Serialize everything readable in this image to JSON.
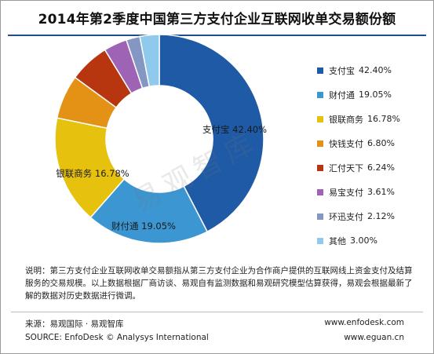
{
  "title": "2014年第2季度中国第三方支付企业互联网收单交易额份额",
  "chart_data": {
    "type": "pie",
    "donut": true,
    "title": "2014年第2季度中国第三方支付企业互联网收单交易额份额",
    "unit": "%",
    "legend_position": "right",
    "slices": [
      {
        "label": "支付宝",
        "value": 42.4,
        "value_text": "42.40%",
        "color": "#1f5aa6"
      },
      {
        "label": "财付通",
        "value": 19.05,
        "value_text": "19.05%",
        "color": "#3b96d2"
      },
      {
        "label": "银联商务",
        "value": 16.78,
        "value_text": "16.78%",
        "color": "#e6c20f"
      },
      {
        "label": "快钱支付",
        "value": 6.8,
        "value_text": "6.80%",
        "color": "#e39215"
      },
      {
        "label": "汇付天下",
        "value": 6.24,
        "value_text": "6.24%",
        "color": "#b8360f"
      },
      {
        "label": "易宝支付",
        "value": 3.61,
        "value_text": "3.61%",
        "color": "#9e63b4"
      },
      {
        "label": "环迅支付",
        "value": 2.12,
        "value_text": "2.12%",
        "color": "#8496c2"
      },
      {
        "label": "其他",
        "value": 3.0,
        "value_text": "3.00%",
        "color": "#8fc9ec"
      }
    ],
    "slice_labels": [
      {
        "label": "支付宝",
        "value_text": "42.40%"
      },
      {
        "label": "财付通",
        "value_text": "19.05%"
      },
      {
        "label": "银联商务",
        "value_text": "16.78%"
      }
    ]
  },
  "note": "说明：第三方支付企业互联网收单交易额指从第三方支付企业为合作商户提供的互联网线上资金支付及结算服务的交易规模。以上数据根据厂商访谈、易观自有监测数据和易观研究模型估算获得，易观会根据最新了解的数据对历史数据进行微调。",
  "source_cn": "来源：易观国际 · 易观智库",
  "source_en": "SOURCE: EnfoDesk © Analysys International",
  "url_1": "www.enfodesk.com",
  "url_2": "www.eguan.cn",
  "watermark": "易观智库"
}
